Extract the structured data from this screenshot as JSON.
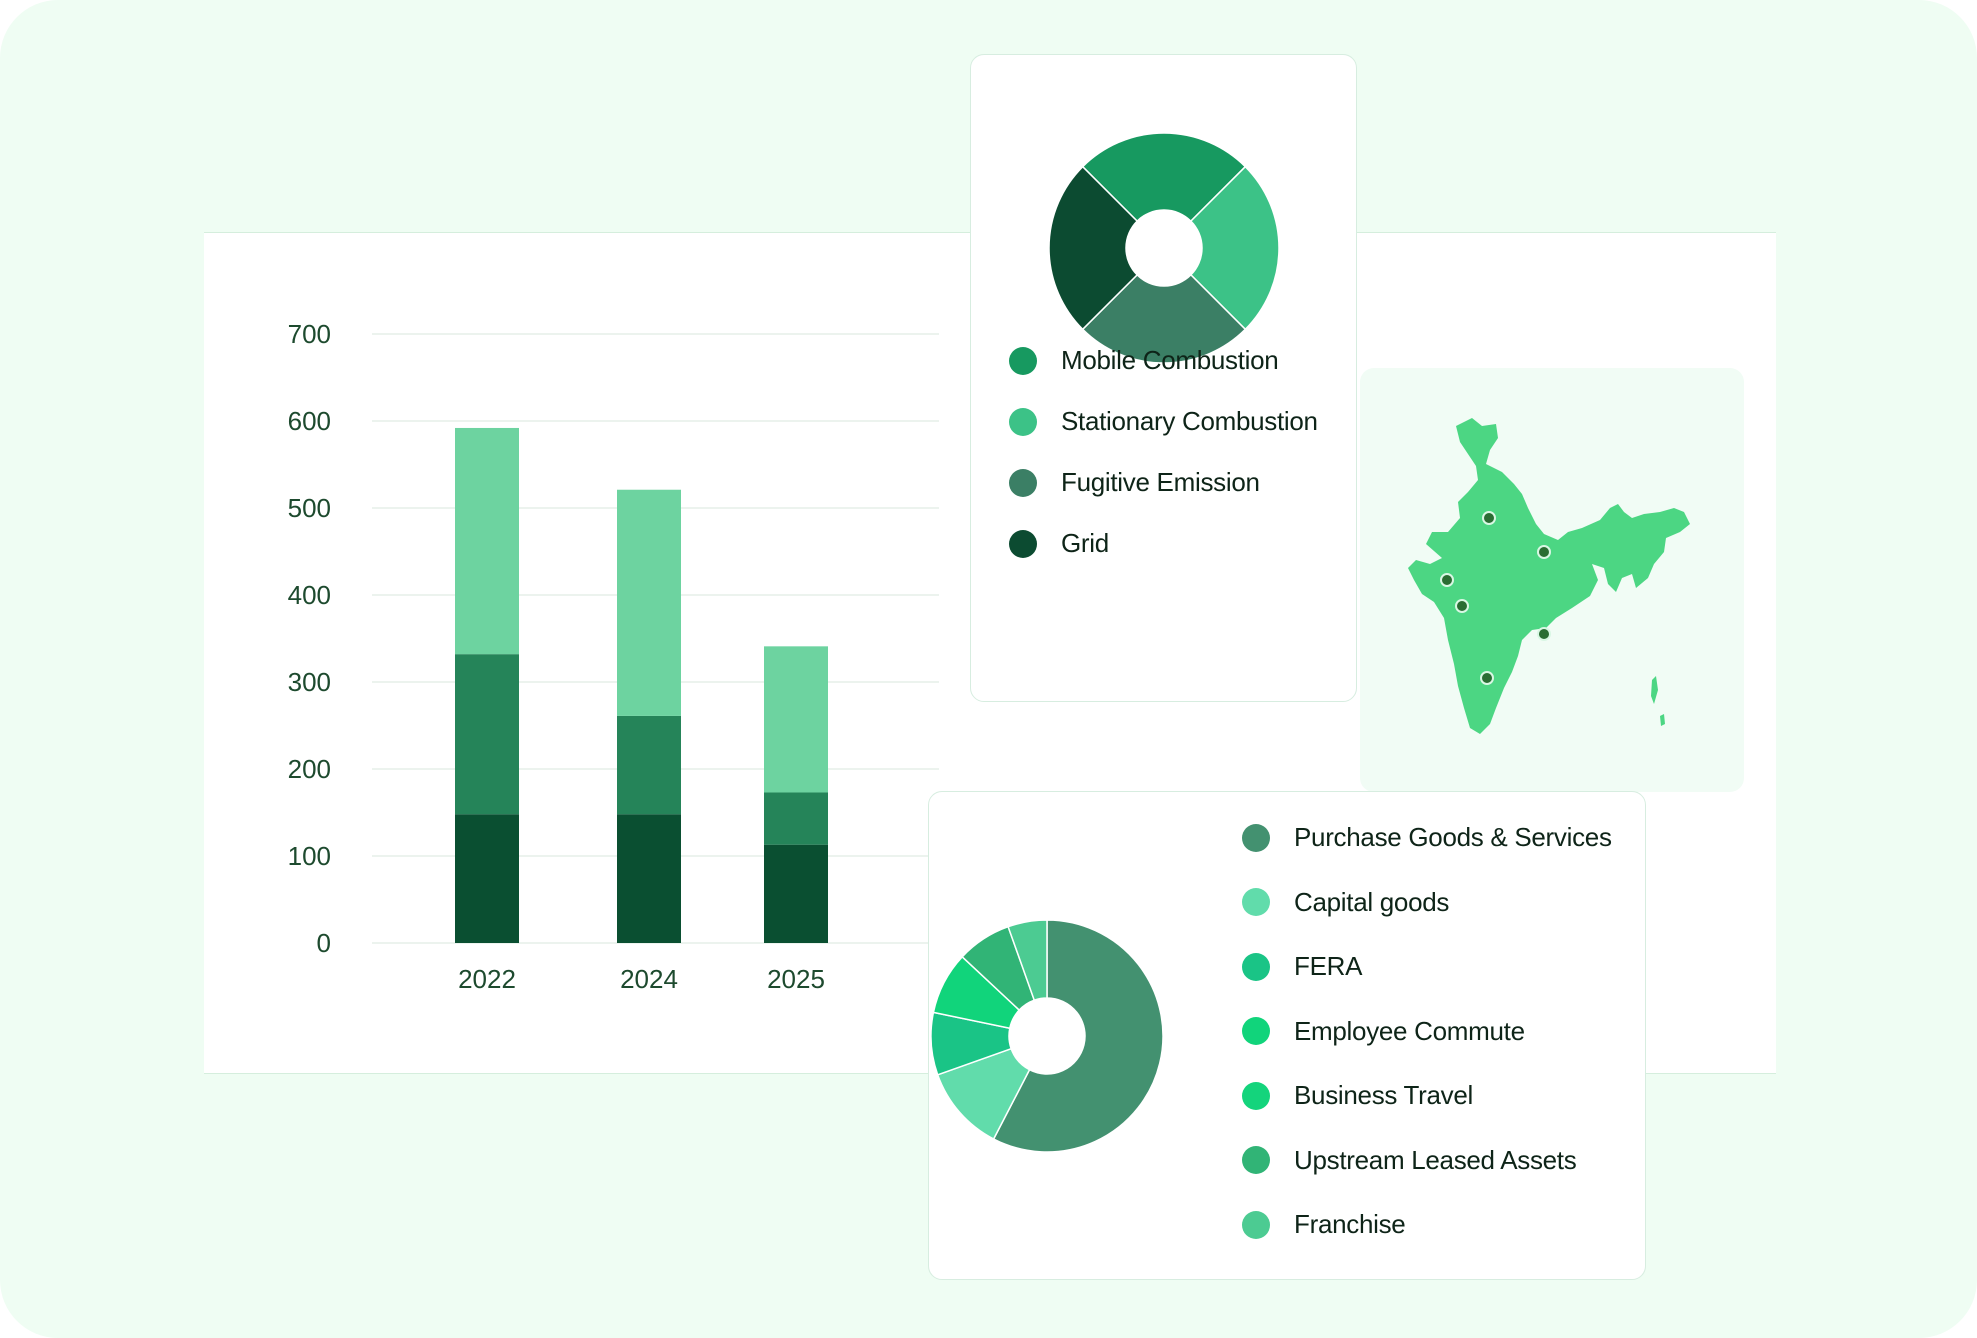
{
  "chart_data": [
    {
      "type": "bar",
      "stacked": true,
      "categories": [
        "2022",
        "2024",
        "2025"
      ],
      "series": [
        {
          "values": [
            148,
            148,
            113
          ],
          "color": "#0a4f31"
        },
        {
          "values": [
            184,
            113,
            60
          ],
          "color": "#258459"
        },
        {
          "values": [
            260,
            260,
            168
          ],
          "color": "#6dd3a0"
        }
      ],
      "y_ticks": [
        "0",
        "100",
        "200",
        "300",
        "400",
        "500",
        "600",
        "700"
      ],
      "ylim": [
        0,
        700
      ],
      "grid": true
    },
    {
      "type": "pie",
      "donut": true,
      "labels": [
        "Mobile Combustion",
        "Stationary Combustion",
        "Fugitive  Emission",
        "Grid"
      ],
      "values": [
        25,
        25,
        25,
        25
      ],
      "colors": [
        "#179960",
        "#3cc287",
        "#3b7f65",
        "#0c4b31"
      ]
    },
    {
      "type": "pie",
      "donut": true,
      "labels": [
        "Purchase Goods & Services",
        "Capital goods",
        "FERA",
        "Employee Commute",
        "Business Travel",
        "Upstream Leased Assets",
        "Franchise"
      ],
      "values": [
        53,
        11,
        8,
        8,
        0,
        7,
        5
      ],
      "colors": [
        "#439170",
        "#61dcab",
        "#1ac486",
        "#11d47b",
        "#14d47c",
        "#31b476",
        "#4ccb92"
      ]
    }
  ],
  "map": {
    "region": "India",
    "fill_color": "#4cd683",
    "marker_color": "#2a6d33",
    "marker_count": 6
  }
}
